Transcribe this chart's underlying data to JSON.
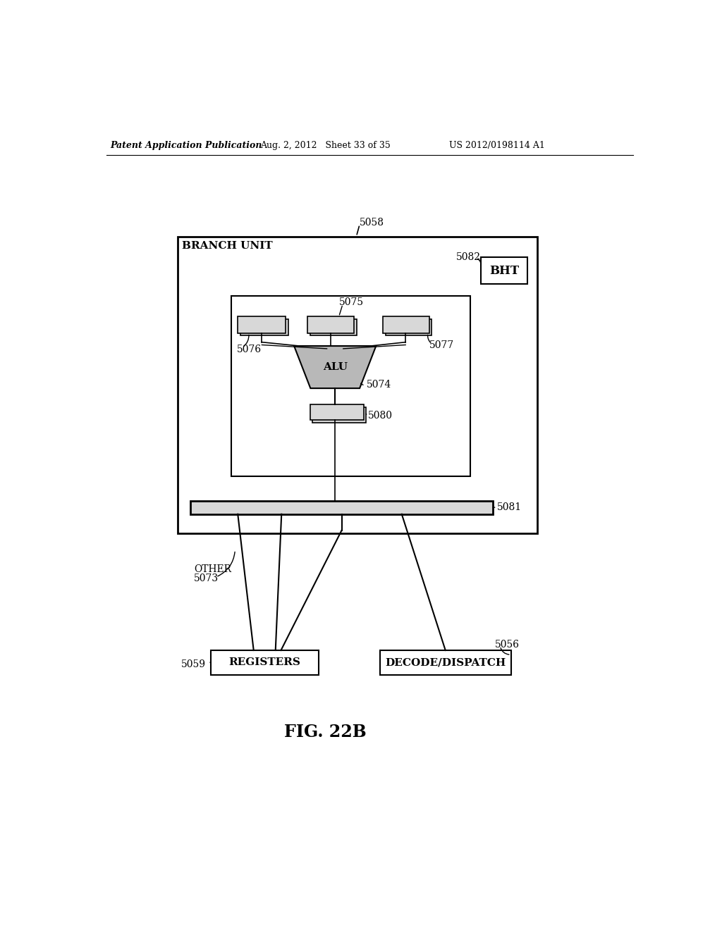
{
  "bg_color": "#ffffff",
  "header_left": "Patent Application Publication",
  "header_mid": "Aug. 2, 2012   Sheet 33 of 35",
  "header_right": "US 2012/0198114 A1",
  "fig_label": "FIG. 22B",
  "branch_unit_label": "BRANCH UNIT",
  "branch_unit_ref": "5058",
  "bht_label": "BHT",
  "bht_ref": "5082",
  "alu_label": "ALU",
  "alu_ref": "5074",
  "reg_box1_ref": "5076",
  "reg_box2_ref": "5075",
  "reg_box3_ref": "5077",
  "output_reg_ref": "5080",
  "bus_ref": "5081",
  "other_label": "OTHER",
  "other_ref": "5073",
  "registers_label": "REGISTERS",
  "registers_ref": "5059",
  "decode_label": "DECODE/DISPATCH",
  "decode_ref": "5056"
}
